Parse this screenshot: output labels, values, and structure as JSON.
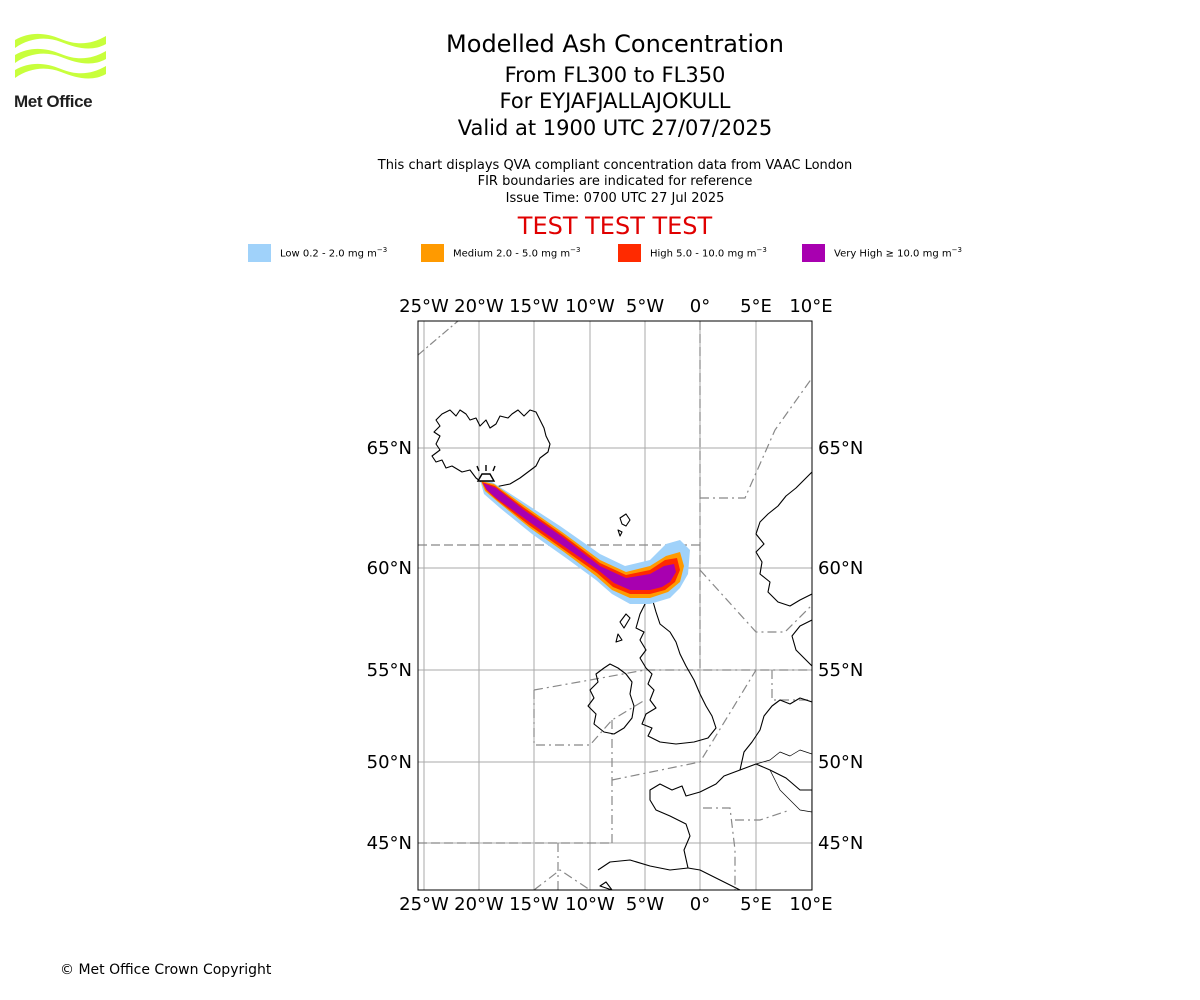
{
  "logo": {
    "text": "Met Office",
    "color": "#c8ff3c"
  },
  "title": {
    "line1": "Modelled Ash Concentration",
    "line2": "From FL300 to FL350",
    "line3": "For EYJAFJALLAJOKULL",
    "line4": "Valid at 1900 UTC 27/07/2025"
  },
  "subtitle": {
    "line1": "This chart displays QVA compliant concentration data from VAAC London",
    "line2": "FIR boundaries are indicated for reference",
    "line3": "Issue Time: 0700 UTC 27 Jul 2025"
  },
  "test_banner": "TEST TEST TEST",
  "legend": [
    {
      "label": "Low 0.2 - 2.0 mg m",
      "exp": "−3",
      "color": "#a0d2fa"
    },
    {
      "label": "Medium 2.0 - 5.0 mg m",
      "exp": "−3",
      "color": "#ff9a00"
    },
    {
      "label": "High 5.0 - 10.0 mg m",
      "exp": "−3",
      "color": "#ff2a00"
    },
    {
      "label": "Very High  ≥  10.0 mg m",
      "exp": "−3",
      "color": "#a800b0"
    }
  ],
  "map": {
    "lon_ticks": [
      "25°W",
      "20°W",
      "15°W",
      "10°W",
      "5°W",
      "0°",
      "5°E",
      "10°E"
    ],
    "lat_ticks": [
      "65°N",
      "60°N",
      "55°N",
      "50°N",
      "45°N"
    ],
    "extent": {
      "lon": [
        -25.5,
        10.5
      ],
      "lat": [
        43,
        68
      ]
    },
    "volcano": "EYJAFJALLAJOKULL",
    "gridline_color": "#aaaaaa",
    "fir_color": "#888888"
  },
  "copyright": "© Met Office Crown Copyright"
}
